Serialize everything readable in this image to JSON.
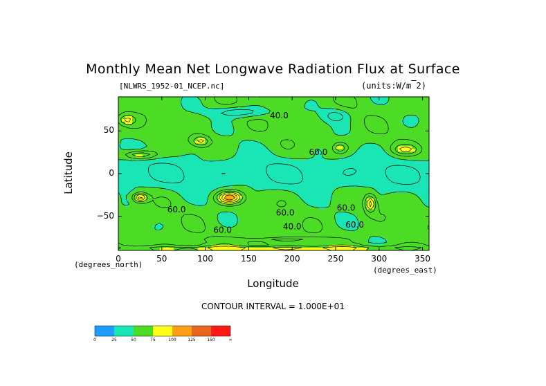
{
  "title": "Monthly Mean Net Longwave Radiation Flux at Surface",
  "file_label": "[NLWRS_1952-01_NCEP.nc]",
  "units_label": "(units:W/m^2)",
  "xlabel": "Longitude",
  "ylabel": "Latitude",
  "x_units": "(degrees_north)",
  "y_units": "(degrees_east)",
  "contour_interval": "CONTOUR INTERVAL = 1.000E+01",
  "chart_data": {
    "type": "heatmap",
    "title": "Monthly Mean Net Longwave Radiation Flux at Surface",
    "xlabel": "Longitude",
    "ylabel": "Latitude",
    "xlim": [
      0,
      357.5
    ],
    "ylim": [
      -90,
      90
    ],
    "x_ticks": [
      "0",
      "50",
      "100",
      "150",
      "200",
      "250",
      "300",
      "350"
    ],
    "x_tick_values": [
      0,
      50,
      100,
      150,
      200,
      250,
      300,
      350
    ],
    "y_ticks": [
      "50",
      "0",
      "−50"
    ],
    "y_tick_values": [
      50,
      0,
      -50
    ],
    "contour_labels": [
      {
        "text": "40.0",
        "lon": 185,
        "lat": 68
      },
      {
        "text": "60.0",
        "lon": 230,
        "lat": 25
      },
      {
        "text": "60.0",
        "lon": 67,
        "lat": -42
      },
      {
        "text": "60.0",
        "lon": 120,
        "lat": -66
      },
      {
        "text": "60.0",
        "lon": 192,
        "lat": -46
      },
      {
        "text": "60.0",
        "lon": 262,
        "lat": -40
      },
      {
        "text": "40.0",
        "lon": 200,
        "lat": -62
      },
      {
        "text": "60.0",
        "lon": 272,
        "lat": -60
      }
    ],
    "colorbar": {
      "levels": [
        "0",
        "25",
        "50",
        "75",
        "100",
        "125",
        "150",
        "∞"
      ],
      "colors": [
        "#1f9dff",
        "#19e6b4",
        "#4ddc25",
        "#ffff19",
        "#ff9f19",
        "#e8661e",
        "#ff1a1a"
      ]
    }
  }
}
